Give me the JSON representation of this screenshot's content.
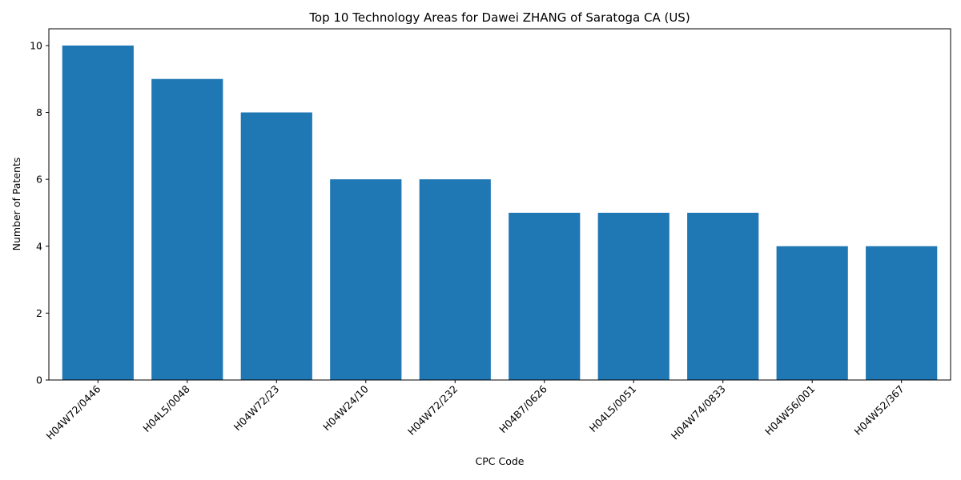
{
  "chart_data": {
    "type": "bar",
    "title": "Top 10 Technology Areas for Dawei ZHANG of Saratoga CA (US)",
    "xlabel": "CPC Code",
    "ylabel": "Number of Patents",
    "categories": [
      "H04W72/0446",
      "H04L5/0048",
      "H04W72/23",
      "H04W24/10",
      "H04W72/232",
      "H04B7/0626",
      "H04L5/0051",
      "H04W74/0833",
      "H04W56/001",
      "H04W52/367"
    ],
    "values": [
      10,
      9,
      8,
      6,
      6,
      5,
      5,
      5,
      4,
      4
    ],
    "ylim": [
      0,
      10.5
    ],
    "yticks": [
      0,
      2,
      4,
      6,
      8,
      10
    ],
    "grid": false,
    "bar_color": "#1f77b4"
  }
}
